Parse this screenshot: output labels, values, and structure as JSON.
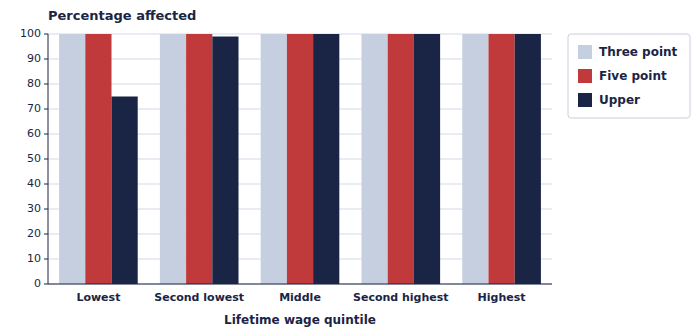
{
  "chart_data": {
    "type": "bar",
    "title": "Percentage affected",
    "xlabel": "Lifetime wage quintile",
    "categories": [
      "Lowest",
      "Second lowest",
      "Middle",
      "Second highest",
      "Highest"
    ],
    "series": [
      {
        "name": "Three point",
        "color": "#c5cfe0",
        "values": [
          100,
          100,
          100,
          100,
          100
        ]
      },
      {
        "name": "Five point",
        "color": "#c0393b",
        "values": [
          100,
          100,
          100,
          100,
          100
        ]
      },
      {
        "name": "Upper",
        "color": "#1a2545",
        "values": [
          75,
          99,
          100,
          100,
          100
        ]
      }
    ],
    "ylim": [
      0,
      100
    ],
    "yticks": [
      0,
      10,
      20,
      30,
      40,
      50,
      60,
      70,
      80,
      90,
      100
    ],
    "grid": true,
    "legend": "right"
  }
}
